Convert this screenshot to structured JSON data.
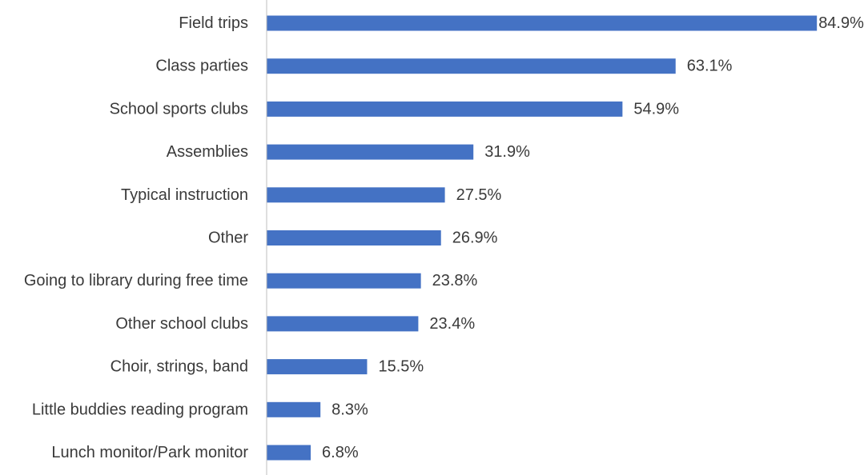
{
  "chart_data": {
    "type": "bar",
    "orientation": "horizontal",
    "categories": [
      "Field trips",
      "Class parties",
      "School sports clubs",
      "Assemblies",
      "Typical instruction",
      "Other",
      "Going to library during free time",
      "Other school clubs",
      "Choir, strings, band",
      "Little buddies reading program",
      "Lunch monitor/Park monitor"
    ],
    "values": [
      84.9,
      63.1,
      54.9,
      31.9,
      27.5,
      26.9,
      23.8,
      23.4,
      15.5,
      8.3,
      6.8
    ],
    "value_labels": [
      "84.9%",
      "63.1%",
      "54.9%",
      "31.9%",
      "27.5%",
      "26.9%",
      "23.8%",
      "23.4%",
      "15.5%",
      "8.3%",
      "6.8%"
    ],
    "xlim": [
      0,
      85
    ],
    "grid": false,
    "legend": "none",
    "bar_color": "#4472C4",
    "axis_color": "#bfbfbf"
  }
}
